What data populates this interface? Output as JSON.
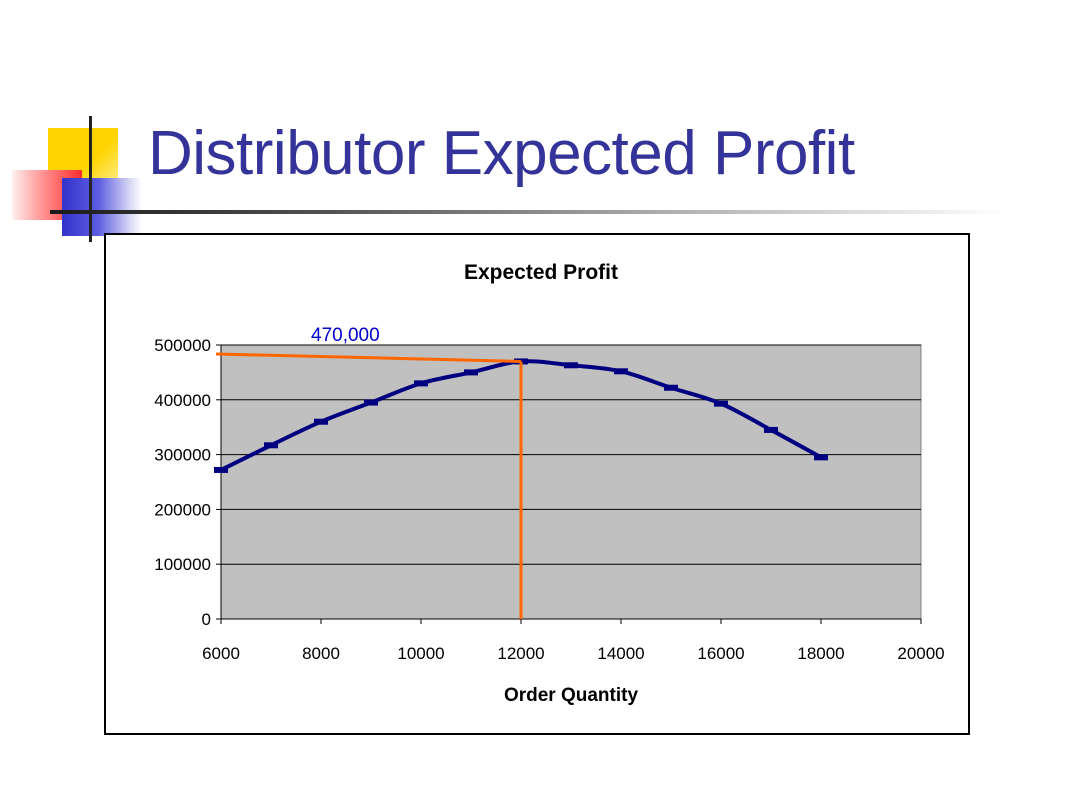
{
  "slide": {
    "title": "Distributor Expected Profit"
  },
  "colors": {
    "title": "#333399",
    "plot_area": "#c0c0c0",
    "series_line": "#000080",
    "reference_lines": "#ff6600",
    "annotation": "#0000cc"
  },
  "chart_data": {
    "type": "line",
    "title": "Expected Profit",
    "xlabel": "Order Quantity",
    "ylabel": "",
    "xlim": [
      6000,
      20000
    ],
    "ylim": [
      0,
      500000
    ],
    "x_ticks": [
      "6000",
      "8000",
      "10000",
      "12000",
      "14000",
      "16000",
      "18000",
      "20000"
    ],
    "y_ticks": [
      "0",
      "100000",
      "200000",
      "300000",
      "400000",
      "500000"
    ],
    "grid": true,
    "legend": "none",
    "series": [
      {
        "x": [
          6000,
          7000,
          8000,
          9000,
          10000,
          11000,
          12000,
          13000,
          14000,
          15000,
          16000,
          17000,
          18000
        ],
        "y": [
          272000,
          317000,
          360000,
          395000,
          430000,
          450000,
          470000,
          463000,
          452000,
          422000,
          393000,
          345000,
          295000
        ]
      }
    ],
    "reference": {
      "x": 12000,
      "y": 470000,
      "label": "470,000"
    }
  }
}
